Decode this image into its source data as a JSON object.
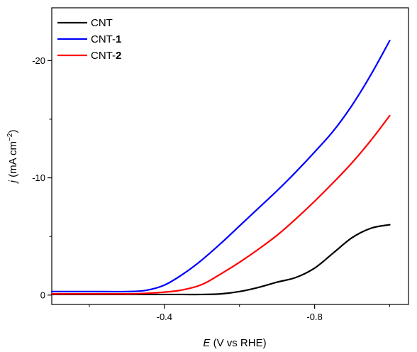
{
  "chart_data": {
    "type": "line",
    "xlabel": {
      "symbol": "E",
      "text": " (V vs RHE)"
    },
    "ylabel": {
      "symbol": "j",
      "text": " (mA cm",
      "sup": "−2",
      "close": ")"
    },
    "xlim": [
      -0.1,
      -1.05
    ],
    "ylim": [
      0.8,
      -24.5
    ],
    "xticks": [
      -0.4,
      -0.8
    ],
    "xtick_labels": [
      "-0.4",
      "-0.8"
    ],
    "yticks": [
      0,
      -10,
      -20
    ],
    "ytick_labels": [
      "0",
      "-10",
      "-20"
    ],
    "legend_position": "top-left",
    "series": [
      {
        "name": "CNT",
        "name_bold": "",
        "color": "#000000",
        "x": [
          -0.1,
          -0.2,
          -0.3,
          -0.4,
          -0.45,
          -0.5,
          -0.55,
          -0.6,
          -0.65,
          -0.7,
          -0.75,
          -0.8,
          -0.85,
          -0.9,
          -0.95,
          -1.0
        ],
        "y": [
          -0.05,
          -0.05,
          -0.05,
          -0.05,
          -0.05,
          -0.05,
          -0.1,
          -0.3,
          -0.65,
          -1.1,
          -1.5,
          -2.3,
          -3.6,
          -4.9,
          -5.7,
          -6.0
        ]
      },
      {
        "name": "CNT-",
        "name_bold": "1",
        "color": "#0000ff",
        "x": [
          -0.1,
          -0.2,
          -0.3,
          -0.35,
          -0.4,
          -0.45,
          -0.5,
          -0.55,
          -0.6,
          -0.65,
          -0.7,
          -0.75,
          -0.8,
          -0.85,
          -0.9,
          -0.95,
          -1.0
        ],
        "y": [
          -0.3,
          -0.3,
          -0.3,
          -0.4,
          -0.85,
          -1.8,
          -3.0,
          -4.4,
          -5.9,
          -7.4,
          -8.9,
          -10.5,
          -12.2,
          -14.0,
          -16.2,
          -18.8,
          -21.7
        ]
      },
      {
        "name": "CNT-",
        "name_bold": "2",
        "color": "#ff0000",
        "x": [
          -0.1,
          -0.2,
          -0.3,
          -0.35,
          -0.4,
          -0.45,
          -0.5,
          -0.55,
          -0.6,
          -0.65,
          -0.7,
          -0.75,
          -0.8,
          -0.85,
          -0.9,
          -0.95,
          -1.0
        ],
        "y": [
          -0.1,
          -0.1,
          -0.1,
          -0.15,
          -0.25,
          -0.45,
          -0.9,
          -1.8,
          -2.8,
          -3.9,
          -5.1,
          -6.5,
          -8.0,
          -9.6,
          -11.3,
          -13.2,
          -15.3
        ]
      }
    ]
  }
}
